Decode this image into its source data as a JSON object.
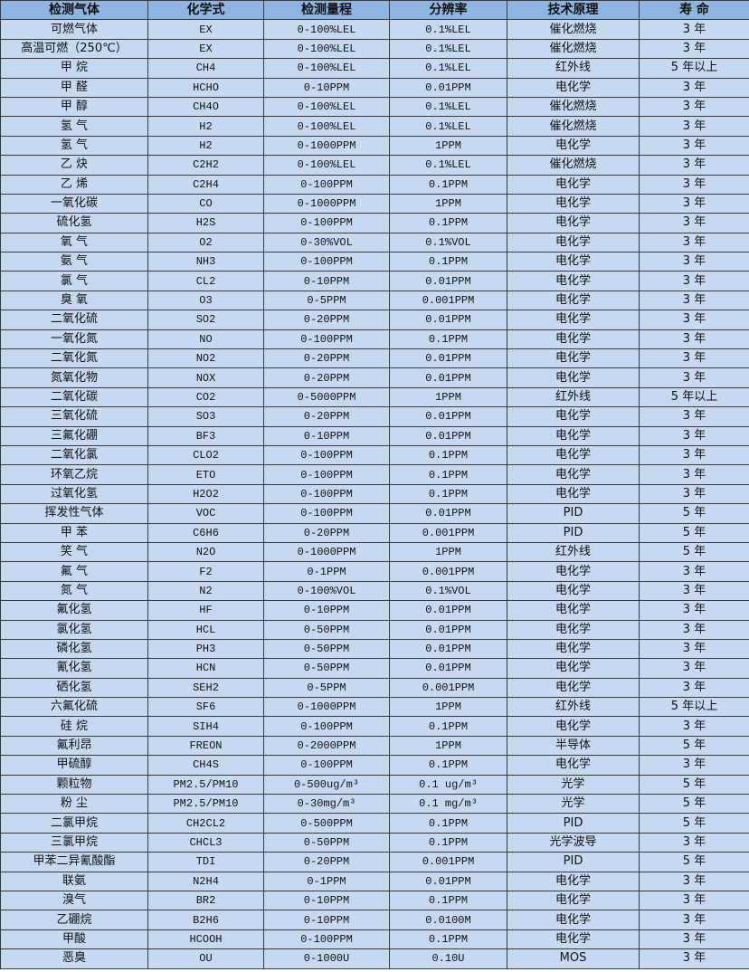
{
  "colors": {
    "header_bg": "#8db4e2",
    "row_bg": "#c6d9f1",
    "border": "#3a3a3a"
  },
  "headers": [
    "检测气体",
    "化学式",
    "检测量程",
    "分辨率",
    "技术原理",
    "寿 命"
  ],
  "rows": [
    [
      "可燃气体",
      "EX",
      "0-100%LEL",
      "0.1%LEL",
      "催化燃烧",
      "3 年"
    ],
    [
      "高温可燃（250℃）",
      "EX",
      "0-100%LEL",
      "0.1%LEL",
      "催化燃烧",
      "3 年"
    ],
    [
      "甲 烷",
      "CH4",
      "0-100%LEL",
      "0.1%LEL",
      "红外线",
      "5 年以上"
    ],
    [
      "甲 醛",
      "HCHO",
      "0-10PPM",
      "0.01PPM",
      "电化学",
      "3 年"
    ],
    [
      "甲 醇",
      "CH4O",
      "0-100%LEL",
      "0.1%LEL",
      "催化燃烧",
      "3 年"
    ],
    [
      "氢 气",
      "H2",
      "0-100%LEL",
      "0.1%LEL",
      "催化燃烧",
      "3 年"
    ],
    [
      "氢 气",
      "H2",
      "0-1000PPM",
      "1PPM",
      "电化学",
      "3 年"
    ],
    [
      "乙 炔",
      "C2H2",
      "0-100%LEL",
      "0.1%LEL",
      "催化燃烧",
      "3 年"
    ],
    [
      "乙 烯",
      "C2H4",
      "0-100PPM",
      "0.1PPM",
      "电化学",
      "3 年"
    ],
    [
      "一氧化碳",
      "CO",
      "0-1000PPM",
      "1PPM",
      "电化学",
      "3 年"
    ],
    [
      "硫化氢",
      "H2S",
      "0-100PPM",
      "0.1PPM",
      "电化学",
      "3 年"
    ],
    [
      "氧 气",
      "O2",
      "0-30%VOL",
      "0.1%VOL",
      "电化学",
      "3 年"
    ],
    [
      "氨 气",
      "NH3",
      "0-100PPM",
      "0.1PPM",
      "电化学",
      "3 年"
    ],
    [
      "氯 气",
      "CL2",
      "0-10PPM",
      "0.01PPM",
      "电化学",
      "3 年"
    ],
    [
      "臭 氧",
      "O3",
      "0-5PPM",
      "0.001PPM",
      "电化学",
      "3 年"
    ],
    [
      "二氧化硫",
      "SO2",
      "0-20PPM",
      "0.01PPM",
      "电化学",
      "3 年"
    ],
    [
      "一氧化氮",
      "NO",
      "0-100PPM",
      "0.1PPM",
      "电化学",
      "3 年"
    ],
    [
      "二氧化氮",
      "NO2",
      "0-20PPM",
      "0.01PPM",
      "电化学",
      "3 年"
    ],
    [
      "氮氧化物",
      "NOX",
      "0-20PPM",
      "0.01PPM",
      "电化学",
      "3 年"
    ],
    [
      "二氧化碳",
      "CO2",
      "0-5000PPM",
      "1PPM",
      "红外线",
      "5 年以上"
    ],
    [
      "三氧化硫",
      "SO3",
      "0-20PPM",
      "0.01PPM",
      "电化学",
      "3 年"
    ],
    [
      "三氟化硼",
      "BF3",
      "0-10PPM",
      "0.01PPM",
      "电化学",
      "3 年"
    ],
    [
      "二氧化氯",
      "CLO2",
      "0-100PPM",
      "0.1PPM",
      "电化学",
      "3 年"
    ],
    [
      "环氧乙烷",
      "ETO",
      "0-100PPM",
      "0.1PPM",
      "电化学",
      "3 年"
    ],
    [
      "过氧化氢",
      "H2O2",
      "0-100PPM",
      "0.1PPM",
      "电化学",
      "3 年"
    ],
    [
      "挥发性气体",
      "VOC",
      "0-100PPM",
      "0.01PPM",
      "PID",
      "5 年"
    ],
    [
      "甲 苯",
      "C6H6",
      "0-20PPM",
      "0.001PPM",
      "PID",
      "5 年"
    ],
    [
      "笑 气",
      "N2O",
      "0-1000PPM",
      "1PPM",
      "红外线",
      "5 年"
    ],
    [
      "氟 气",
      "F2",
      "0-1PPM",
      "0.001PPM",
      "电化学",
      "3 年"
    ],
    [
      "氮 气",
      "N2",
      "0-100%VOL",
      "0.1%VOL",
      "电化学",
      "3 年"
    ],
    [
      "氟化氢",
      "HF",
      "0-10PPM",
      "0.01PPM",
      "电化学",
      "3 年"
    ],
    [
      "氯化氢",
      "HCL",
      "0-50PPM",
      "0.01PPM",
      "电化学",
      "3 年"
    ],
    [
      "磷化氢",
      "PH3",
      "0-50PPM",
      "0.01PPM",
      "电化学",
      "3 年"
    ],
    [
      "氰化氢",
      "HCN",
      "0-50PPM",
      "0.01PPM",
      "电化学",
      "3 年"
    ],
    [
      "硒化氢",
      "SEH2",
      "0-5PPM",
      "0.001PPM",
      "电化学",
      "3 年"
    ],
    [
      "六氟化硫",
      "SF6",
      "0-1000PPM",
      "1PPM",
      "红外线",
      "5 年以上"
    ],
    [
      "硅 烷",
      "SIH4",
      "0-100PPM",
      "0.1PPM",
      "电化学",
      "3 年"
    ],
    [
      "氟利昂",
      "FREON",
      "0-2000PPM",
      "1PPM",
      "半导体",
      "5 年"
    ],
    [
      "甲硫醇",
      "CH4S",
      "0-100PPM",
      "0.1PPM",
      "电化学",
      "3 年"
    ],
    [
      "颗粒物",
      "PM2.5/PM10",
      "0-500ug/m³",
      "0.1 ug/m³",
      "光学",
      "5 年"
    ],
    [
      "粉 尘",
      "PM2.5/PM10",
      "0-30mg/m³",
      "0.1 mg/m³",
      "光学",
      "5 年"
    ],
    [
      "二氯甲烷",
      "CH2CL2",
      "0-500PPM",
      "0.1PPM",
      "PID",
      "5 年"
    ],
    [
      "三氯甲烷",
      "CHCL3",
      "0-50PPM",
      "0.1PPM",
      "光学波导",
      "3 年"
    ],
    [
      "甲苯二异氰酸酯",
      "TDI",
      "0-20PPM",
      "0.001PPM",
      "PID",
      "5 年"
    ],
    [
      "联氨",
      "N2H4",
      "0-1PPM",
      "0.01PPM",
      "电化学",
      "3 年"
    ],
    [
      "溴气",
      "BR2",
      "0-10PPM",
      "0.1PPM",
      "电化学",
      "3 年"
    ],
    [
      "乙硼烷",
      "B2H6",
      "0-10PPM",
      "0.0100M",
      "电化学",
      "3 年"
    ],
    [
      "甲酸",
      "HCOOH",
      "0-100PPM",
      "0.1PPM",
      "电化学",
      "3 年"
    ],
    [
      "恶臭",
      "OU",
      "0-1000U",
      "0.10U",
      "MOS",
      "3 年"
    ]
  ]
}
